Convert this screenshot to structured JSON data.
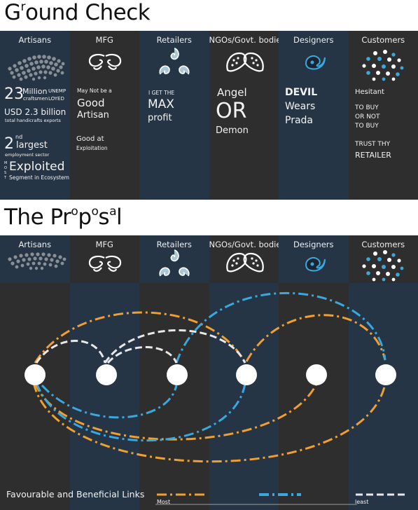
{
  "ground_check": {
    "title_parts": [
      "G",
      "r",
      "o",
      "und Check"
    ],
    "columns": [
      "Artisans",
      "MFG",
      "Retailers",
      "NGOs/Govt. bodies",
      "Designers",
      "Customers"
    ],
    "artisans": {
      "stat1_number": "23",
      "stat1_million": "Million",
      "stat1_craftsmen": "craftsmen",
      "stat1_unemp": "UNEMP",
      "stat1_loyed": "LOYED",
      "stat2": "USD 2.3 billion",
      "stat2_sub": "total handicrafts exports",
      "stat3_number": "2",
      "stat3_sup": "nd",
      "stat3_word": "largest",
      "stat3_sub": "employment sector",
      "stat4_letters": [
        "M",
        "O",
        "S",
        "T"
      ],
      "stat4_word": "Exploited",
      "stat4_sub": "Segment in Ecosystem"
    },
    "mfg": {
      "line1": "May Not be a",
      "line2": "Good",
      "line3": "Artisan",
      "line4": "Good at",
      "line5": "Exploitation"
    },
    "retailers": {
      "line1": "I GET THE",
      "line2": "MAX",
      "line3": "profit"
    },
    "ngos": {
      "line1": "Angel",
      "line2": "OR",
      "line3": "Demon"
    },
    "designers": {
      "line1": "DEVIL",
      "line2": "Wears",
      "line3": "Prada"
    },
    "customers": {
      "line1": "Hesitant",
      "line2": "TO BUY",
      "line3": "OR NOT",
      "line4": "TO BUY",
      "line5": "TRUST  THY",
      "line6": "RETAILER"
    }
  },
  "proposal": {
    "title_parts": [
      "The Pr",
      "o",
      "p",
      "o",
      "s",
      "a",
      "l"
    ],
    "columns": [
      "Artisans",
      "MFG",
      "Retailers",
      "NGOs/Govt. bodies",
      "Designers",
      "Customers"
    ],
    "legend": {
      "label": "Favourable and Beneficial Links",
      "most": "Most",
      "least": "least"
    }
  },
  "colors": {
    "panel_dark": "#2e2e2e",
    "panel_blue": "#253545",
    "orange": "#f0a030",
    "blue": "#3aa8df",
    "white": "#ffffff"
  }
}
